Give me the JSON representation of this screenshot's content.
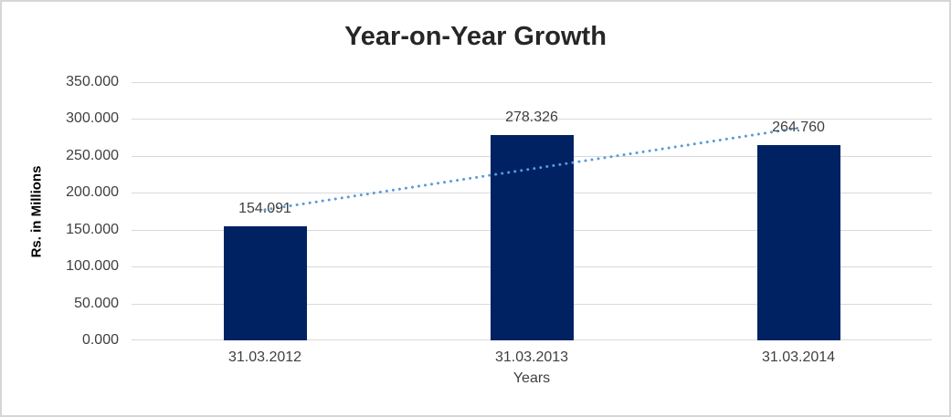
{
  "chart_data": {
    "type": "bar",
    "title": "Year-on-Year Growth",
    "xlabel": "Years",
    "ylabel": "Rs. in Millions",
    "categories": [
      "31.03.2012",
      "31.03.2013",
      "31.03.2014"
    ],
    "values": [
      154.091,
      278.326,
      264.76
    ],
    "value_labels": [
      "154.091",
      "278.326",
      "264.760"
    ],
    "ylim": [
      0,
      350
    ],
    "yticks": [
      {
        "value": 0,
        "label": "0.000"
      },
      {
        "value": 50,
        "label": "50.000"
      },
      {
        "value": 100,
        "label": "100.000"
      },
      {
        "value": 150,
        "label": "150.000"
      },
      {
        "value": 200,
        "label": "200.000"
      },
      {
        "value": 250,
        "label": "250.000"
      },
      {
        "value": 300,
        "label": "300.000"
      },
      {
        "value": 350,
        "label": "350.000"
      }
    ],
    "grid": true,
    "legend": "none",
    "trendline": {
      "type": "linear",
      "style": "dotted",
      "color": "#5b9bd5"
    },
    "colors": {
      "bar": "#002263",
      "gridline": "#d9d9d9",
      "title_text": "#262626",
      "axis_text": "#3f3f3f",
      "frame_border": "#d6d6d6",
      "background": "#ffffff"
    }
  }
}
